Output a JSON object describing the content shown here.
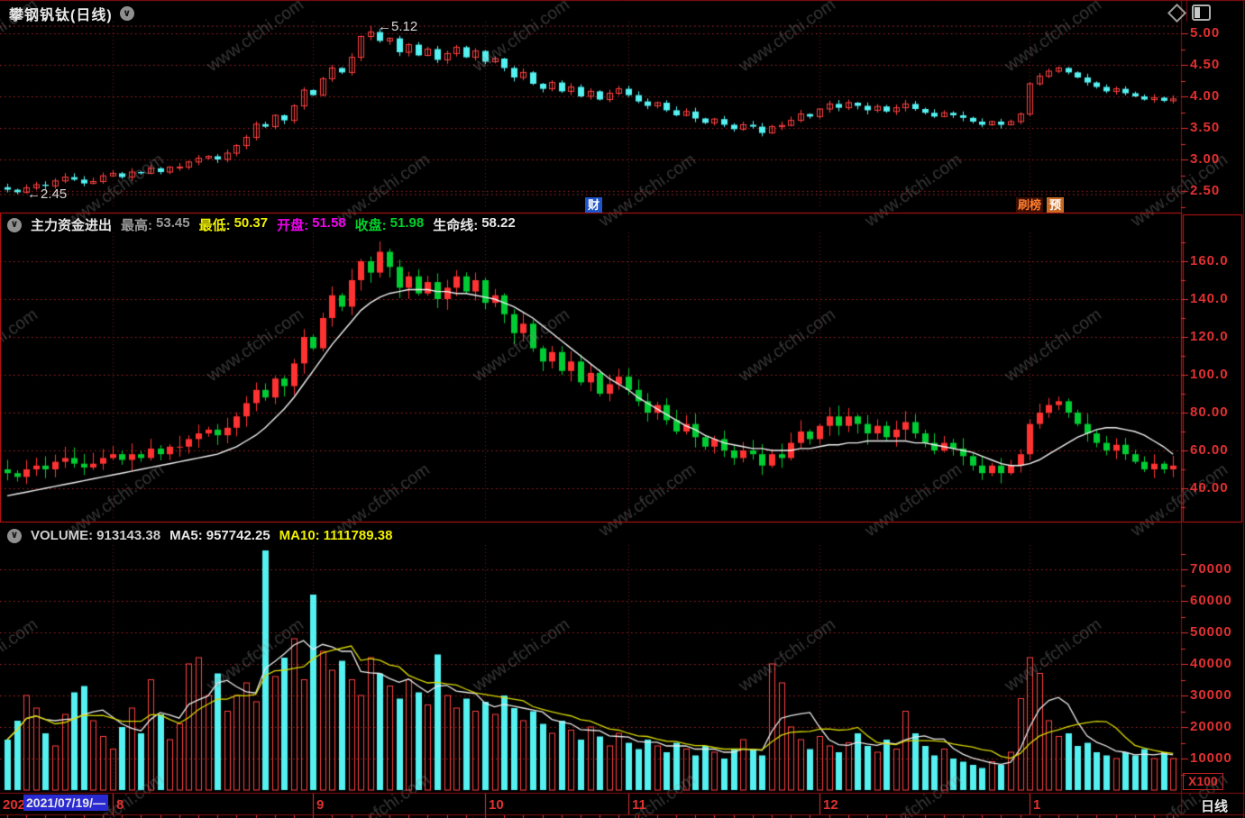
{
  "window": {
    "title": "攀钢钒钛(日线)"
  },
  "watermark": "www.cfchi.com",
  "badges": {
    "finance": "财",
    "hot": "刷榜",
    "pre": "预"
  },
  "panels": {
    "flow_header": {
      "name": "主力资金进出",
      "high_label": "最高:",
      "high_value": "53.45",
      "low_label": "最低:",
      "low_value": "50.37",
      "open_label": "开盘:",
      "open_value": "51.58",
      "close_label": "收盘:",
      "close_value": "51.98",
      "life_label": "生命线:",
      "life_value": "58.22"
    },
    "volume_header": {
      "vol_label": "VOLUME:",
      "vol_value": "913143.38",
      "ma5_label": "MA5:",
      "ma5_value": "957742.25",
      "ma10_label": "MA10:",
      "ma10_value": "1111789.38"
    }
  },
  "axis": {
    "year_prefix": "202",
    "date_box": "2021/07/19/—",
    "months": [
      {
        "label": "8",
        "index": 11
      },
      {
        "label": "9",
        "index": 32
      },
      {
        "label": "10",
        "index": 50
      },
      {
        "label": "11",
        "index": 65
      },
      {
        "label": "12",
        "index": 85
      },
      {
        "label": "1",
        "index": 107
      }
    ],
    "period_label": "日线",
    "unit_label": "X100"
  },
  "colors": {
    "up": "#ff4040",
    "down": "#55f0f0",
    "flow_up": "#ff3232",
    "flow_down": "#00cc33",
    "ma5": "#e8e8e8",
    "ma10": "#d8d800",
    "lifeline": "#f0f0f0",
    "scale_text": "#e23030",
    "grid": "#b02424",
    "border": "#8a0e0e",
    "selected_border": "#cc1414",
    "highlight_bg": "#2a2ad2",
    "badge_blue": "#1f54c8",
    "badge_orange": "#c96a24"
  },
  "chart_data": [
    {
      "type": "candlestick",
      "panel": "price",
      "title": "攀钢钒钛(日线)",
      "ylim": [
        2.2,
        5.2
      ],
      "yticks": [
        2.5,
        3.0,
        3.5,
        4.0,
        4.5,
        5.0
      ],
      "ytick_labels": [
        "2.50",
        "3.00",
        "3.50",
        "4.00",
        "4.50",
        "5.00"
      ],
      "marked_high": {
        "index": 38,
        "value": 5.12,
        "label": "←5.12"
      },
      "marked_low": {
        "index": 1,
        "value": 2.45,
        "label": "←2.45"
      },
      "closes": [
        2.52,
        2.48,
        2.55,
        2.6,
        2.58,
        2.66,
        2.72,
        2.68,
        2.62,
        2.65,
        2.74,
        2.78,
        2.72,
        2.8,
        2.78,
        2.86,
        2.8,
        2.88,
        2.88,
        2.96,
        3.02,
        3.05,
        3.0,
        3.1,
        3.22,
        3.35,
        3.56,
        3.52,
        3.7,
        3.62,
        3.85,
        4.1,
        4.02,
        4.28,
        4.45,
        4.38,
        4.62,
        4.95,
        5.02,
        4.88,
        4.92,
        4.7,
        4.82,
        4.65,
        4.75,
        4.58,
        4.68,
        4.78,
        4.62,
        4.72,
        4.55,
        4.6,
        4.45,
        4.3,
        4.38,
        4.2,
        4.12,
        4.22,
        4.08,
        4.15,
        4.0,
        4.08,
        3.95,
        4.05,
        4.12,
        4.02,
        3.92,
        3.85,
        3.9,
        3.78,
        3.7,
        3.76,
        3.65,
        3.58,
        3.64,
        3.55,
        3.48,
        3.55,
        3.52,
        3.42,
        3.52,
        3.54,
        3.62,
        3.72,
        3.68,
        3.8,
        3.88,
        3.82,
        3.9,
        3.85,
        3.78,
        3.84,
        3.76,
        3.82,
        3.88,
        3.8,
        3.74,
        3.68,
        3.74,
        3.7,
        3.66,
        3.6,
        3.55,
        3.6,
        3.55,
        3.6,
        3.72,
        4.2,
        4.32,
        4.4,
        4.45,
        4.38,
        4.3,
        4.22,
        4.15,
        4.08,
        4.12,
        4.05,
        4.0,
        3.95,
        3.98,
        3.93,
        3.96
      ]
    },
    {
      "type": "candlestick+line",
      "panel": "flow",
      "title": "主力资金进出",
      "ylim": [
        23,
        175
      ],
      "yticks": [
        40,
        60,
        80,
        100,
        120,
        140,
        160
      ],
      "ytick_labels": [
        "40.00",
        "60.00",
        "80.00",
        "100.0",
        "120.0",
        "140.0",
        "160.0"
      ],
      "closes": [
        48,
        46,
        50,
        52,
        50,
        54,
        56,
        53,
        51,
        53,
        56,
        58,
        55,
        58,
        56,
        61,
        58,
        62,
        62,
        66,
        69,
        71,
        68,
        72,
        78,
        85,
        92,
        88,
        98,
        94,
        106,
        120,
        114,
        130,
        142,
        136,
        150,
        160,
        154,
        165,
        157,
        146,
        152,
        143,
        149,
        140,
        146,
        152,
        144,
        150,
        138,
        142,
        132,
        122,
        127,
        114,
        107,
        112,
        102,
        107,
        96,
        101,
        90,
        95,
        99,
        92,
        86,
        80,
        84,
        76,
        70,
        74,
        67,
        62,
        66,
        60,
        56,
        60,
        58,
        52,
        58,
        56,
        64,
        70,
        66,
        73,
        78,
        73,
        78,
        74,
        69,
        73,
        67,
        71,
        75,
        69,
        64,
        60,
        64,
        61,
        57,
        52,
        48,
        52,
        48,
        52,
        58,
        74,
        80,
        84,
        86,
        80,
        74,
        69,
        64,
        60,
        63,
        58,
        54,
        50,
        53,
        50,
        52
      ],
      "line": {
        "name": "生命线",
        "values": [
          36,
          37,
          38,
          39,
          40,
          41,
          42,
          43,
          44,
          45,
          46,
          47,
          48,
          49,
          50,
          51,
          52,
          53,
          54,
          55,
          56,
          57,
          58,
          60,
          62,
          65,
          68,
          72,
          77,
          82,
          88,
          95,
          102,
          109,
          116,
          122,
          128,
          134,
          138,
          141,
          143,
          144,
          145,
          145,
          145,
          144,
          144,
          143,
          143,
          142,
          141,
          140,
          138,
          136,
          133,
          130,
          126,
          122,
          118,
          114,
          110,
          106,
          102,
          98,
          95,
          92,
          88,
          85,
          82,
          79,
          76,
          73,
          71,
          68,
          66,
          64,
          63,
          62,
          61,
          61,
          60,
          60,
          60,
          61,
          61,
          62,
          63,
          63,
          64,
          64,
          65,
          65,
          65,
          65,
          65,
          64,
          64,
          63,
          62,
          61,
          60,
          59,
          57,
          55,
          53,
          52,
          52,
          53,
          55,
          58,
          61,
          64,
          67,
          69,
          71,
          72,
          72,
          71,
          70,
          68,
          65,
          62,
          58
        ]
      }
    },
    {
      "type": "bar+line",
      "panel": "volume",
      "title": "VOLUME",
      "unit": "X100",
      "ylim": [
        0,
        77700
      ],
      "yticks": [
        10000,
        20000,
        30000,
        40000,
        50000,
        60000,
        70000
      ],
      "ytick_labels": [
        "10000",
        "20000",
        "30000",
        "40000",
        "50000",
        "60000",
        "70000"
      ],
      "ma_periods": [
        5,
        10
      ],
      "values": [
        16000,
        22000,
        30000,
        26000,
        18000,
        14000,
        24000,
        31000,
        33000,
        22000,
        17000,
        13000,
        20000,
        26000,
        18000,
        35000,
        24000,
        16000,
        21000,
        40000,
        42000,
        30000,
        37000,
        25000,
        30000,
        34000,
        28000,
        76000,
        36000,
        42000,
        48000,
        35000,
        62000,
        44000,
        38000,
        41000,
        35000,
        30000,
        42000,
        37000,
        33000,
        29000,
        35000,
        31000,
        27000,
        43000,
        30000,
        26000,
        29000,
        25000,
        28000,
        24000,
        30000,
        26000,
        22000,
        25000,
        21000,
        18000,
        22000,
        19000,
        16000,
        20000,
        17000,
        14000,
        18000,
        15000,
        13000,
        16000,
        14000,
        12000,
        15000,
        13000,
        11000,
        14000,
        12000,
        10000,
        13000,
        16000,
        13000,
        11000,
        40000,
        34000,
        20000,
        16000,
        13000,
        17000,
        14000,
        12000,
        15000,
        18000,
        14000,
        12000,
        16000,
        13000,
        25000,
        18000,
        14000,
        11000,
        13000,
        10000,
        9000,
        8000,
        7000,
        9000,
        8000,
        12000,
        29000,
        42000,
        37000,
        22000,
        17000,
        18000,
        14000,
        15000,
        12000,
        11000,
        10000,
        12000,
        11000,
        13000,
        10000,
        12000,
        10000
      ]
    }
  ]
}
